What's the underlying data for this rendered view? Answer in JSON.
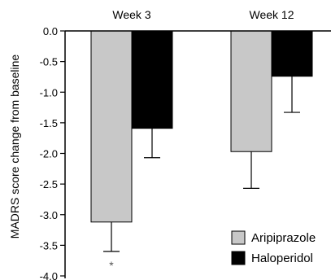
{
  "chart_data": {
    "type": "bar",
    "title": "",
    "xlabel": "",
    "ylabel": "MADRS score change from baseline",
    "categories": [
      "Week 3",
      "Week 12"
    ],
    "series": [
      {
        "name": "Aripiprazole",
        "color": "#c8c8c8",
        "values": [
          -3.12,
          -1.97
        ],
        "error_lower": [
          -3.6,
          -2.57
        ],
        "significance": [
          "*",
          ""
        ]
      },
      {
        "name": "Haloperidol",
        "color": "#000000",
        "values": [
          -1.59,
          -0.74
        ],
        "error_lower": [
          -2.07,
          -1.33
        ],
        "significance": [
          "",
          ""
        ]
      }
    ],
    "ylim": [
      -4.0,
      0.0
    ],
    "y_ticks": [
      0.0,
      -0.5,
      -1.0,
      -1.5,
      -2.0,
      -2.5,
      -3.0,
      -3.5,
      -4.0
    ],
    "y_tick_labels": [
      "0.0",
      "-0.5",
      "-1.0",
      "-1.5",
      "-2.0",
      "-2.5",
      "-3.0",
      "-3.5",
      "-4.0"
    ],
    "category_labels_position": "top",
    "legend_position": "bottom-right",
    "grid": false
  }
}
